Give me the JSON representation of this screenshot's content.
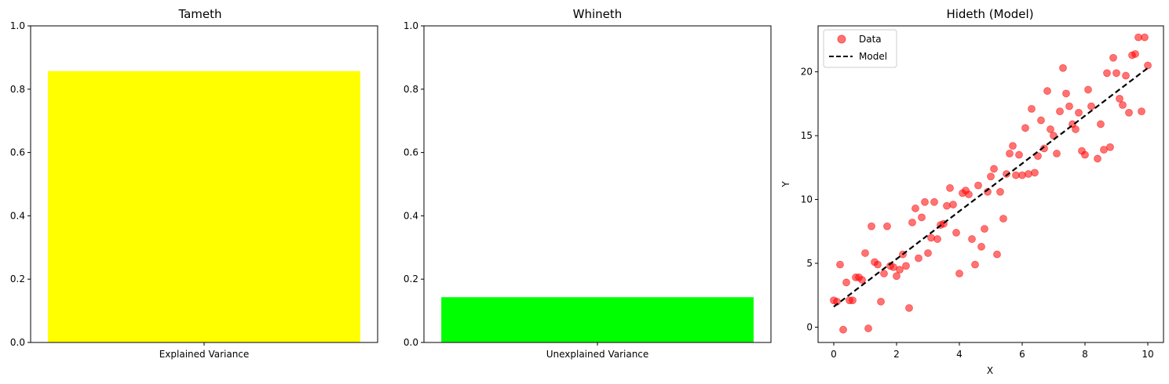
{
  "chart_data": [
    {
      "type": "bar",
      "title": "Tameth",
      "categories": [
        "Explained Variance"
      ],
      "values": [
        0.857
      ],
      "ylim": [
        0,
        1.0
      ],
      "yticks": [
        "0.0",
        "0.2",
        "0.4",
        "0.6",
        "0.8",
        "1.0"
      ],
      "color": "#ffff00",
      "grid": false
    },
    {
      "type": "bar",
      "title": "Whineth",
      "categories": [
        "Unexplained Variance"
      ],
      "values": [
        0.143
      ],
      "ylim": [
        0,
        1.0
      ],
      "yticks": [
        "0.0",
        "0.2",
        "0.4",
        "0.6",
        "0.8",
        "1.0"
      ],
      "color": "#00ff00",
      "grid": false
    },
    {
      "type": "scatter",
      "title": "Hideth (Model)",
      "xlabel": "X",
      "ylabel": "Y",
      "xlim": [
        -0.5,
        10.5
      ],
      "ylim": [
        -1.2,
        23.6
      ],
      "xticks": [
        "0",
        "2",
        "4",
        "6",
        "8",
        "10"
      ],
      "yticks": [
        "0",
        "5",
        "10",
        "15",
        "20"
      ],
      "grid": false,
      "legend_position": "top-left",
      "series": [
        {
          "name": "Data",
          "kind": "scatter",
          "color": "#ff0000",
          "points": [
            [
              0.0,
              2.1
            ],
            [
              0.1,
              2.0
            ],
            [
              0.2,
              4.9
            ],
            [
              0.3,
              -0.2
            ],
            [
              0.4,
              3.5
            ],
            [
              0.5,
              2.1
            ],
            [
              0.6,
              2.1
            ],
            [
              0.7,
              3.9
            ],
            [
              0.8,
              3.9
            ],
            [
              0.9,
              3.7
            ],
            [
              1.0,
              5.8
            ],
            [
              1.1,
              -0.1
            ],
            [
              1.2,
              7.9
            ],
            [
              1.3,
              5.1
            ],
            [
              1.4,
              4.9
            ],
            [
              1.5,
              2.0
            ],
            [
              1.6,
              4.2
            ],
            [
              1.7,
              7.9
            ],
            [
              1.8,
              4.8
            ],
            [
              1.9,
              4.7
            ],
            [
              2.0,
              4.0
            ],
            [
              2.1,
              4.5
            ],
            [
              2.2,
              5.7
            ],
            [
              2.3,
              4.8
            ],
            [
              2.4,
              1.5
            ],
            [
              2.5,
              8.2
            ],
            [
              2.6,
              9.3
            ],
            [
              2.7,
              5.4
            ],
            [
              2.8,
              8.6
            ],
            [
              2.9,
              9.8
            ],
            [
              3.0,
              5.8
            ],
            [
              3.1,
              7.0
            ],
            [
              3.2,
              9.8
            ],
            [
              3.3,
              6.9
            ],
            [
              3.4,
              8.0
            ],
            [
              3.5,
              8.1
            ],
            [
              3.6,
              9.5
            ],
            [
              3.7,
              10.9
            ],
            [
              3.8,
              9.6
            ],
            [
              3.9,
              7.4
            ],
            [
              4.0,
              4.2
            ],
            [
              4.1,
              10.5
            ],
            [
              4.2,
              10.7
            ],
            [
              4.3,
              10.4
            ],
            [
              4.4,
              6.9
            ],
            [
              4.5,
              4.9
            ],
            [
              4.6,
              11.1
            ],
            [
              4.7,
              6.3
            ],
            [
              4.8,
              7.7
            ],
            [
              4.9,
              10.6
            ],
            [
              5.0,
              11.8
            ],
            [
              5.1,
              12.4
            ],
            [
              5.2,
              5.7
            ],
            [
              5.3,
              10.6
            ],
            [
              5.4,
              8.5
            ],
            [
              5.5,
              12.0
            ],
            [
              5.6,
              13.6
            ],
            [
              5.7,
              14.2
            ],
            [
              5.8,
              11.9
            ],
            [
              5.9,
              13.5
            ],
            [
              6.0,
              11.9
            ],
            [
              6.1,
              15.6
            ],
            [
              6.2,
              12.0
            ],
            [
              6.3,
              17.1
            ],
            [
              6.4,
              12.1
            ],
            [
              6.5,
              13.4
            ],
            [
              6.6,
              16.2
            ],
            [
              6.7,
              14.0
            ],
            [
              6.8,
              18.5
            ],
            [
              6.9,
              15.5
            ],
            [
              7.0,
              15.0
            ],
            [
              7.1,
              13.6
            ],
            [
              7.2,
              16.9
            ],
            [
              7.3,
              20.3
            ],
            [
              7.4,
              18.3
            ],
            [
              7.5,
              17.3
            ],
            [
              7.6,
              15.9
            ],
            [
              7.7,
              15.5
            ],
            [
              7.8,
              16.8
            ],
            [
              7.9,
              13.8
            ],
            [
              8.0,
              13.5
            ],
            [
              8.1,
              18.6
            ],
            [
              8.2,
              17.3
            ],
            [
              8.4,
              13.2
            ],
            [
              8.5,
              15.9
            ],
            [
              8.6,
              13.9
            ],
            [
              8.7,
              19.9
            ],
            [
              8.8,
              14.1
            ],
            [
              8.9,
              21.1
            ],
            [
              9.0,
              19.9
            ],
            [
              9.1,
              17.9
            ],
            [
              9.2,
              17.4
            ],
            [
              9.3,
              19.7
            ],
            [
              9.4,
              16.8
            ],
            [
              9.5,
              21.3
            ],
            [
              9.6,
              21.4
            ],
            [
              9.7,
              22.7
            ],
            [
              9.8,
              16.9
            ],
            [
              9.9,
              22.7
            ],
            [
              10.0,
              20.5
            ]
          ]
        },
        {
          "name": "Model",
          "kind": "line",
          "color": "#000000",
          "points": [
            [
              0,
              1.6
            ],
            [
              10,
              20.3
            ]
          ]
        }
      ]
    }
  ]
}
